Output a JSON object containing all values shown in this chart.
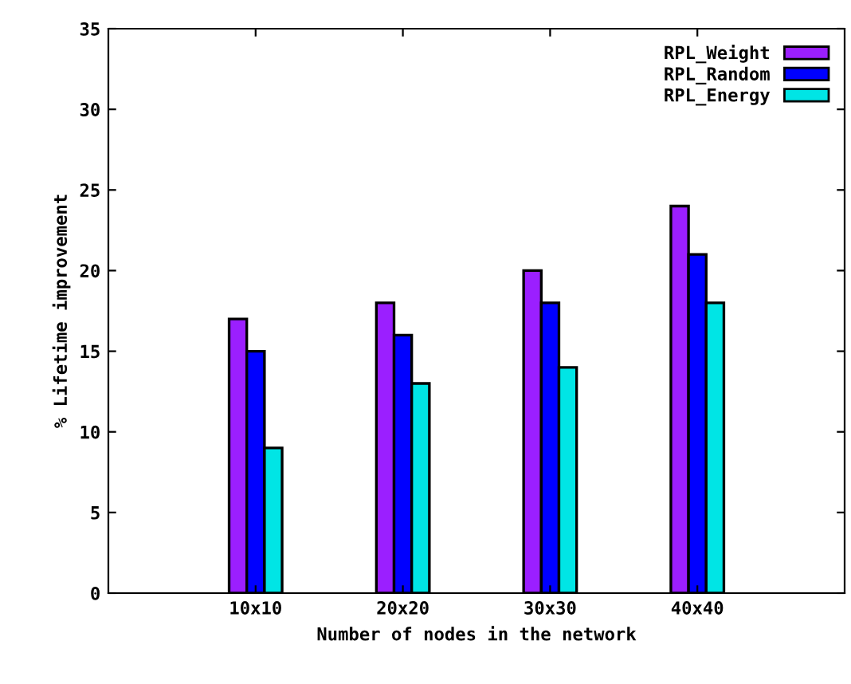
{
  "chart_data": {
    "type": "bar",
    "xlabel": "Number of nodes in the network",
    "ylabel": "% Lifetime improvement",
    "categories": [
      "10x10",
      "20x20",
      "30x30",
      "40x40"
    ],
    "series": [
      {
        "name": "RPL_Weight",
        "color": "#9b1fff",
        "values": [
          17,
          18,
          20,
          24
        ]
      },
      {
        "name": "RPL_Random",
        "color": "#0000ff",
        "values": [
          15,
          16,
          18,
          21
        ]
      },
      {
        "name": "RPL_Energy",
        "color": "#00e5e5",
        "values": [
          9,
          13,
          14,
          18
        ]
      }
    ],
    "ylim": [
      0,
      35
    ],
    "yticks": [
      0,
      5,
      10,
      15,
      20,
      25,
      30,
      35
    ],
    "grid": false,
    "legend": "top right"
  }
}
